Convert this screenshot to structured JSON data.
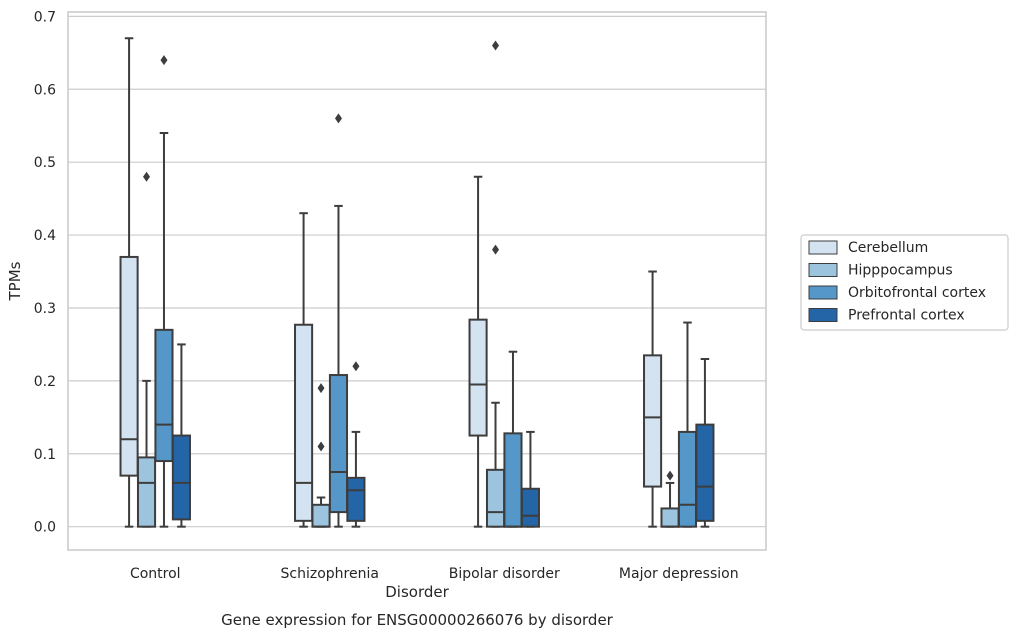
{
  "caption": "Gene expression for ENSG00000266076 by disorder",
  "chart_data": {
    "type": "box",
    "xlabel": "Disorder",
    "ylabel": "TPMs",
    "ylim": [
      -0.032,
      0.706
    ],
    "yticks": [
      0.0,
      0.1,
      0.2,
      0.3,
      0.4,
      0.5,
      0.6,
      0.7
    ],
    "ytick_labels": [
      "0.0",
      "0.1",
      "0.2",
      "0.3",
      "0.4",
      "0.5",
      "0.6",
      "0.7"
    ],
    "grid": "horizontal",
    "legend_position": "right",
    "categories": [
      "Control",
      "Schizophrenia",
      "Bipolar disorder",
      "Major depression"
    ],
    "series": [
      {
        "name": "Cerebellum",
        "color": "#d4e3f2",
        "boxes": [
          {
            "whisker_low": 0.0,
            "q1": 0.07,
            "median": 0.12,
            "q3": 0.37,
            "whisker_high": 0.67,
            "outliers": []
          },
          {
            "whisker_low": 0.0,
            "q1": 0.008,
            "median": 0.06,
            "q3": 0.277,
            "whisker_high": 0.43,
            "outliers": []
          },
          {
            "whisker_low": 0.0,
            "q1": 0.125,
            "median": 0.195,
            "q3": 0.284,
            "whisker_high": 0.48,
            "outliers": []
          },
          {
            "whisker_low": 0.0,
            "q1": 0.055,
            "median": 0.15,
            "q3": 0.235,
            "whisker_high": 0.35,
            "outliers": []
          }
        ]
      },
      {
        "name": "Hipppocampus",
        "color": "#9cc4de",
        "boxes": [
          {
            "whisker_low": 0.0,
            "q1": 0.0,
            "median": 0.06,
            "q3": 0.095,
            "whisker_high": 0.2,
            "outliers": [
              0.48
            ]
          },
          {
            "whisker_low": 0.0,
            "q1": 0.0,
            "median": 0.0,
            "q3": 0.03,
            "whisker_high": 0.04,
            "outliers": [
              0.11,
              0.19
            ]
          },
          {
            "whisker_low": 0.0,
            "q1": 0.0,
            "median": 0.02,
            "q3": 0.078,
            "whisker_high": 0.17,
            "outliers": [
              0.38,
              0.66
            ]
          },
          {
            "whisker_low": 0.0,
            "q1": 0.0,
            "median": 0.0,
            "q3": 0.025,
            "whisker_high": 0.06,
            "outliers": [
              0.07
            ]
          }
        ]
      },
      {
        "name": "Orbitofrontal cortex",
        "color": "#5597c8",
        "boxes": [
          {
            "whisker_low": 0.0,
            "q1": 0.09,
            "median": 0.14,
            "q3": 0.27,
            "whisker_high": 0.54,
            "outliers": [
              0.64
            ]
          },
          {
            "whisker_low": 0.0,
            "q1": 0.02,
            "median": 0.075,
            "q3": 0.208,
            "whisker_high": 0.44,
            "outliers": [
              0.56
            ]
          },
          {
            "whisker_low": 0.0,
            "q1": 0.0,
            "median": 0.0,
            "q3": 0.128,
            "whisker_high": 0.24,
            "outliers": []
          },
          {
            "whisker_low": 0.0,
            "q1": 0.0,
            "median": 0.03,
            "q3": 0.13,
            "whisker_high": 0.28,
            "outliers": []
          }
        ]
      },
      {
        "name": "Prefrontal cortex",
        "color": "#2465a7",
        "boxes": [
          {
            "whisker_low": 0.0,
            "q1": 0.01,
            "median": 0.06,
            "q3": 0.125,
            "whisker_high": 0.25,
            "outliers": []
          },
          {
            "whisker_low": 0.0,
            "q1": 0.008,
            "median": 0.05,
            "q3": 0.067,
            "whisker_high": 0.13,
            "outliers": [
              0.22
            ]
          },
          {
            "whisker_low": 0.0,
            "q1": 0.0,
            "median": 0.015,
            "q3": 0.052,
            "whisker_high": 0.13,
            "outliers": []
          },
          {
            "whisker_low": 0.0,
            "q1": 0.008,
            "median": 0.055,
            "q3": 0.14,
            "whisker_high": 0.23,
            "outliers": []
          }
        ]
      }
    ]
  }
}
